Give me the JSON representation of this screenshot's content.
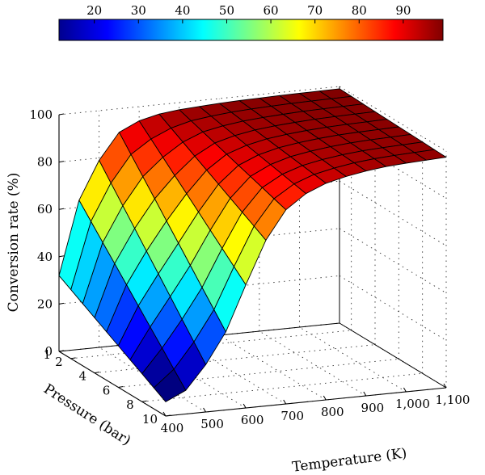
{
  "chart_data": {
    "type": "surface",
    "title": "",
    "xlabel": "Temperature (K)",
    "ylabel": "Pressure (bar)",
    "zlabel": "Conversion rate (%)",
    "x_ticks": [
      "400",
      "500",
      "600",
      "700",
      "800",
      "900",
      "1,000",
      "1,100"
    ],
    "y_ticks": [
      "1",
      "2",
      "4",
      "6",
      "8",
      "10"
    ],
    "z_ticks": [
      "0",
      "20",
      "40",
      "60",
      "80",
      "100"
    ],
    "colorbar_ticks": [
      "20",
      "30",
      "40",
      "50",
      "60",
      "70",
      "80",
      "90"
    ],
    "xlim": [
      400,
      1100
    ],
    "ylim": [
      1,
      10
    ],
    "zlim": [
      0,
      100
    ],
    "colorbar_range": [
      12,
      99
    ],
    "colormap": "jet",
    "grid": true,
    "temperature": [
      400,
      450,
      500,
      550,
      600,
      650,
      700,
      750,
      800,
      850,
      900,
      950,
      1000,
      1050,
      1100
    ],
    "pressure": [
      1,
      2,
      3,
      4,
      5,
      6,
      7,
      8,
      9,
      10
    ],
    "conversion_edges": {
      "pressure_1": [
        32,
        63,
        79,
        90,
        94,
        96,
        97,
        97.5,
        98,
        98.3,
        98.5,
        98.7,
        98.8,
        98.9,
        99
      ],
      "pressure_10": [
        6,
        10,
        20,
        33,
        52,
        70,
        82,
        88,
        91.5,
        93.5,
        95,
        96,
        96.6,
        97,
        97.4
      ]
    }
  }
}
